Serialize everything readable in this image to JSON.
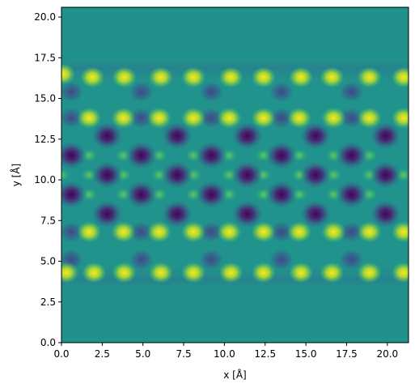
{
  "chart_data": {
    "type": "heatmap",
    "title": "",
    "xlabel": "x [Å]",
    "ylabel": "y [Å]",
    "xlim": [
      0,
      21.3
    ],
    "ylim": [
      0,
      20.6
    ],
    "xticks": [
      0.0,
      2.5,
      5.0,
      7.5,
      10.0,
      12.5,
      15.0,
      17.5,
      20.0
    ],
    "xtick_labels": [
      "0.0",
      "2.5",
      "5.0",
      "7.5",
      "10.0",
      "12.5",
      "15.0",
      "17.5",
      "20.0"
    ],
    "yticks": [
      0.0,
      2.5,
      5.0,
      7.5,
      10.0,
      12.5,
      15.0,
      17.5,
      20.0
    ],
    "ytick_labels": [
      "0.0",
      "2.5",
      "5.0",
      "7.5",
      "10.0",
      "12.5",
      "15.0",
      "17.5",
      "20.0"
    ],
    "colormap": "viridis",
    "colormap_stops": [
      "#440154",
      "#3b528b",
      "#21918c",
      "#5ec962",
      "#fde725"
    ],
    "background_color": "#21918c",
    "grid": false,
    "extent_y": [
      3.0,
      17.7
    ],
    "periodicity_x": 4.27,
    "features": {
      "bright_spots": [
        {
          "x": 0.3,
          "y": 4.3
        },
        {
          "x": 2.0,
          "y": 4.3
        },
        {
          "x": 3.85,
          "y": 4.3
        },
        {
          "x": 6.1,
          "y": 4.3
        },
        {
          "x": 8.1,
          "y": 4.3
        },
        {
          "x": 10.4,
          "y": 4.3
        },
        {
          "x": 12.4,
          "y": 4.3
        },
        {
          "x": 14.7,
          "y": 4.3
        },
        {
          "x": 16.6,
          "y": 4.3
        },
        {
          "x": 18.9,
          "y": 4.3
        },
        {
          "x": 21.0,
          "y": 4.3
        },
        {
          "x": 1.9,
          "y": 16.3
        },
        {
          "x": 3.85,
          "y": 16.3
        },
        {
          "x": 6.1,
          "y": 16.3
        },
        {
          "x": 8.1,
          "y": 16.3
        },
        {
          "x": 10.4,
          "y": 16.3
        },
        {
          "x": 12.4,
          "y": 16.3
        },
        {
          "x": 14.7,
          "y": 16.3
        },
        {
          "x": 16.6,
          "y": 16.3
        },
        {
          "x": 18.9,
          "y": 16.3
        },
        {
          "x": 21.0,
          "y": 16.3
        },
        {
          "x": 0.1,
          "y": 16.5
        },
        {
          "x": 1.7,
          "y": 6.8
        },
        {
          "x": 3.8,
          "y": 6.8
        },
        {
          "x": 6.0,
          "y": 6.8
        },
        {
          "x": 8.1,
          "y": 6.8
        },
        {
          "x": 10.3,
          "y": 6.8
        },
        {
          "x": 12.4,
          "y": 6.8
        },
        {
          "x": 14.6,
          "y": 6.8
        },
        {
          "x": 16.7,
          "y": 6.8
        },
        {
          "x": 18.9,
          "y": 6.8
        },
        {
          "x": 21.0,
          "y": 6.8
        },
        {
          "x": 1.7,
          "y": 13.8
        },
        {
          "x": 3.8,
          "y": 13.8
        },
        {
          "x": 6.0,
          "y": 13.8
        },
        {
          "x": 8.1,
          "y": 13.8
        },
        {
          "x": 10.3,
          "y": 13.8
        },
        {
          "x": 12.4,
          "y": 13.8
        },
        {
          "x": 14.6,
          "y": 13.8
        },
        {
          "x": 16.7,
          "y": 13.8
        },
        {
          "x": 18.9,
          "y": 13.8
        },
        {
          "x": 21.0,
          "y": 13.8
        }
      ],
      "dark_spots": [
        {
          "x": 2.8,
          "y": 7.9
        },
        {
          "x": 7.1,
          "y": 7.9
        },
        {
          "x": 11.4,
          "y": 7.9
        },
        {
          "x": 15.6,
          "y": 7.9
        },
        {
          "x": 19.9,
          "y": 7.9
        },
        {
          "x": 0.6,
          "y": 9.1
        },
        {
          "x": 4.9,
          "y": 9.1
        },
        {
          "x": 9.2,
          "y": 9.1
        },
        {
          "x": 13.5,
          "y": 9.1
        },
        {
          "x": 17.8,
          "y": 9.1
        },
        {
          "x": 2.8,
          "y": 10.3
        },
        {
          "x": 7.1,
          "y": 10.3
        },
        {
          "x": 11.4,
          "y": 10.3
        },
        {
          "x": 15.6,
          "y": 10.3
        },
        {
          "x": 19.9,
          "y": 10.3
        },
        {
          "x": 0.6,
          "y": 11.5
        },
        {
          "x": 4.9,
          "y": 11.5
        },
        {
          "x": 9.2,
          "y": 11.5
        },
        {
          "x": 13.5,
          "y": 11.5
        },
        {
          "x": 17.8,
          "y": 11.5
        },
        {
          "x": 2.8,
          "y": 12.7
        },
        {
          "x": 7.1,
          "y": 12.7
        },
        {
          "x": 11.4,
          "y": 12.7
        },
        {
          "x": 15.6,
          "y": 12.7
        },
        {
          "x": 19.9,
          "y": 12.7
        }
      ],
      "medium_dark_spots": [
        {
          "x": 0.6,
          "y": 5.1
        },
        {
          "x": 4.9,
          "y": 5.1
        },
        {
          "x": 9.2,
          "y": 5.1
        },
        {
          "x": 13.5,
          "y": 5.1
        },
        {
          "x": 17.8,
          "y": 5.1
        },
        {
          "x": 0.6,
          "y": 15.4
        },
        {
          "x": 4.9,
          "y": 15.4
        },
        {
          "x": 9.2,
          "y": 15.4
        },
        {
          "x": 13.5,
          "y": 15.4
        },
        {
          "x": 17.8,
          "y": 15.4
        },
        {
          "x": 0.6,
          "y": 6.8
        },
        {
          "x": 4.9,
          "y": 6.8
        },
        {
          "x": 9.2,
          "y": 6.8
        },
        {
          "x": 13.5,
          "y": 6.8
        },
        {
          "x": 17.8,
          "y": 6.8
        },
        {
          "x": 0.6,
          "y": 13.8
        },
        {
          "x": 4.9,
          "y": 13.8
        },
        {
          "x": 9.2,
          "y": 13.8
        },
        {
          "x": 13.5,
          "y": 13.8
        },
        {
          "x": 17.8,
          "y": 13.8
        }
      ],
      "green_spots": [
        {
          "x": 0.0,
          "y": 10.3
        },
        {
          "x": 1.7,
          "y": 10.3
        },
        {
          "x": 3.8,
          "y": 10.3
        },
        {
          "x": 6.0,
          "y": 10.3
        },
        {
          "x": 8.1,
          "y": 10.3
        },
        {
          "x": 10.3,
          "y": 10.3
        },
        {
          "x": 12.4,
          "y": 10.3
        },
        {
          "x": 14.6,
          "y": 10.3
        },
        {
          "x": 16.7,
          "y": 10.3
        },
        {
          "x": 18.9,
          "y": 10.3
        },
        {
          "x": 21.0,
          "y": 10.3
        },
        {
          "x": 1.7,
          "y": 9.1
        },
        {
          "x": 3.8,
          "y": 9.1
        },
        {
          "x": 6.0,
          "y": 9.1
        },
        {
          "x": 8.1,
          "y": 9.1
        },
        {
          "x": 10.3,
          "y": 9.1
        },
        {
          "x": 12.4,
          "y": 9.1
        },
        {
          "x": 14.6,
          "y": 9.1
        },
        {
          "x": 16.7,
          "y": 9.1
        },
        {
          "x": 18.9,
          "y": 9.1
        },
        {
          "x": 1.7,
          "y": 11.5
        },
        {
          "x": 3.8,
          "y": 11.5
        },
        {
          "x": 6.0,
          "y": 11.5
        },
        {
          "x": 8.1,
          "y": 11.5
        },
        {
          "x": 10.3,
          "y": 11.5
        },
        {
          "x": 12.4,
          "y": 11.5
        },
        {
          "x": 14.6,
          "y": 11.5
        },
        {
          "x": 16.7,
          "y": 11.5
        },
        {
          "x": 18.9,
          "y": 11.5
        }
      ]
    }
  }
}
